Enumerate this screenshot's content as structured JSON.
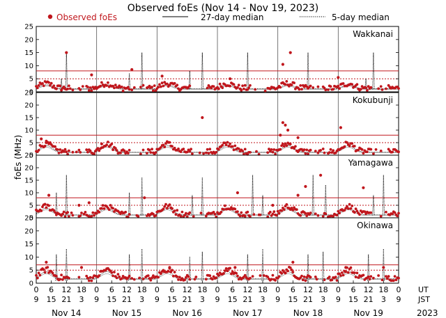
{
  "chart_data": {
    "type": "scatter",
    "title": "Observed foEs (Nov 14 - Nov 19, 2023)",
    "ylabel": "foEs (MHz)",
    "legend": {
      "placement": "top",
      "entries": [
        "Observed foEs",
        "27-day median",
        "5-day median"
      ]
    },
    "colors": {
      "observed": "#c0171d",
      "median27": "#000000",
      "median5": "#000000",
      "threshold": "#c0171d",
      "frame": "#000000"
    },
    "x_axis": {
      "days": [
        "Nov 14",
        "Nov 15",
        "Nov 16",
        "Nov 17",
        "Nov 18",
        "Nov 19"
      ],
      "ut_ticks": [
        "0",
        "6",
        "12",
        "18",
        "0",
        "6",
        "12",
        "18",
        "0",
        "6",
        "12",
        "18",
        "0",
        "6",
        "12",
        "18",
        "0",
        "6",
        "12",
        "18",
        "0",
        "6",
        "12",
        "18",
        "0"
      ],
      "jst_ticks": [
        "9",
        "15",
        "21",
        "3",
        "9",
        "15",
        "21",
        "3",
        "9",
        "15",
        "21",
        "3",
        "9",
        "15",
        "21",
        "3",
        "9",
        "15",
        "21",
        "3",
        "9",
        "15",
        "21",
        "3",
        "9"
      ],
      "ut_label": "UT",
      "jst_label": "JST",
      "year": "2023",
      "range_hours": [
        0,
        144
      ]
    },
    "y_axis": {
      "range": [
        0,
        25
      ],
      "ticks": [
        "0",
        "5",
        "10",
        "15",
        "20",
        "25"
      ],
      "grid": false
    },
    "panels": [
      {
        "station": "Wakkanai",
        "thresholds": [
          5,
          8
        ],
        "spikes": [
          [
            12,
            15
          ],
          [
            42,
            15
          ],
          [
            66,
            15
          ],
          [
            84,
            15
          ],
          [
            108,
            15
          ],
          [
            134,
            15
          ],
          [
            37,
            7
          ],
          [
            61,
            8
          ],
          [
            10,
            5
          ],
          [
            131,
            5
          ]
        ],
        "outliers": [
          [
            12,
            15
          ],
          [
            101,
            15
          ],
          [
            98,
            10.5
          ],
          [
            22,
            6.5
          ],
          [
            38,
            8.5
          ],
          [
            50,
            6
          ],
          [
            120,
            5.5
          ],
          [
            77,
            5
          ]
        ]
      },
      {
        "station": "Kokubunji",
        "thresholds": [
          5,
          8
        ],
        "spikes": [],
        "outliers": [
          [
            66,
            15
          ],
          [
            98,
            13
          ],
          [
            99,
            12
          ],
          [
            100,
            10
          ],
          [
            121,
            11
          ],
          [
            104,
            7
          ],
          [
            2,
            6.5
          ],
          [
            4,
            5
          ],
          [
            26,
            4.5
          ],
          [
            97,
            8
          ]
        ]
      },
      {
        "station": "Yamagawa",
        "thresholds": [
          5,
          8
        ],
        "spikes": [
          [
            12,
            17
          ],
          [
            8,
            10
          ],
          [
            42,
            16
          ],
          [
            37,
            10
          ],
          [
            66,
            16
          ],
          [
            62,
            9
          ],
          [
            86,
            17
          ],
          [
            110,
            17
          ],
          [
            115,
            13
          ],
          [
            138,
            17
          ],
          [
            134,
            9
          ],
          [
            90,
            9
          ]
        ],
        "outliers": [
          [
            5,
            9
          ],
          [
            107,
            12.5
          ],
          [
            113,
            17
          ],
          [
            104,
            9
          ],
          [
            43,
            8
          ],
          [
            80,
            10
          ],
          [
            130,
            12
          ],
          [
            17,
            5
          ],
          [
            21,
            6
          ],
          [
            94,
            5
          ]
        ]
      },
      {
        "station": "Okinawa",
        "thresholds": [
          5,
          7
        ],
        "spikes": [
          [
            8,
            11
          ],
          [
            12,
            13
          ],
          [
            37,
            11
          ],
          [
            42,
            13
          ],
          [
            61,
            10
          ],
          [
            66,
            12
          ],
          [
            84,
            11
          ],
          [
            90,
            13
          ],
          [
            108,
            11
          ],
          [
            114,
            12
          ],
          [
            132,
            11
          ],
          [
            138,
            13
          ]
        ],
        "outliers": [
          [
            4,
            8
          ],
          [
            53,
            6
          ],
          [
            79,
            6
          ],
          [
            102,
            8
          ],
          [
            99,
            4
          ],
          [
            123,
            6
          ],
          [
            138,
            6
          ],
          [
            18,
            6
          ]
        ]
      }
    ]
  }
}
